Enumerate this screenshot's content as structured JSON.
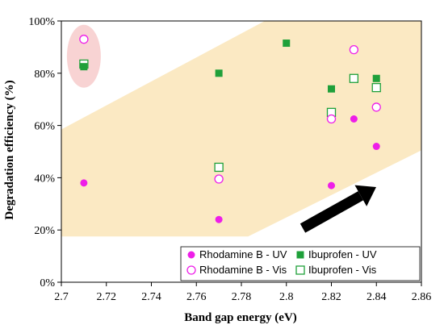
{
  "chart_data": {
    "type": "scatter",
    "title": "",
    "xlabel": "Band gap energy (eV)",
    "ylabel": "Degradation efficiency (%)",
    "xlim": [
      2.7,
      2.86
    ],
    "ylim": [
      0,
      100
    ],
    "x_ticks": [
      "2.7",
      "2.72",
      "2.74",
      "2.76",
      "2.78",
      "2.8",
      "2.82",
      "2.84",
      "2.86"
    ],
    "y_ticks": [
      "0%",
      "20%",
      "40%",
      "60%",
      "80%",
      "100%"
    ],
    "grid": false,
    "legend_position": "bottom-right",
    "series": [
      {
        "name": "Rhodamine B - UV",
        "marker": "filled-circle",
        "color": "#ee1ee8",
        "points": [
          [
            2.71,
            38
          ],
          [
            2.77,
            24
          ],
          [
            2.82,
            37
          ],
          [
            2.83,
            62.5
          ],
          [
            2.84,
            52
          ]
        ]
      },
      {
        "name": "Rhodamine B - Vis",
        "marker": "open-circle",
        "color": "#ee1ee8",
        "points": [
          [
            2.71,
            93
          ],
          [
            2.77,
            39.5
          ],
          [
            2.82,
            62.5
          ],
          [
            2.83,
            89
          ],
          [
            2.84,
            67
          ]
        ]
      },
      {
        "name": "Ibuprofen - UV",
        "marker": "filled-square",
        "color": "#1fa03a",
        "points": [
          [
            2.71,
            82.5
          ],
          [
            2.77,
            80
          ],
          [
            2.8,
            91.5
          ],
          [
            2.82,
            74
          ],
          [
            2.84,
            78
          ]
        ]
      },
      {
        "name": "Ibuprofen - Vis",
        "marker": "open-square",
        "color": "#1fa03a",
        "points": [
          [
            2.71,
            83.5
          ],
          [
            2.77,
            44
          ],
          [
            2.82,
            65
          ],
          [
            2.83,
            78
          ],
          [
            2.84,
            74.5
          ]
        ]
      }
    ],
    "annotations": {
      "trend_band_color": "#fbe9c3",
      "highlight_ellipse_color": "#f8d3d3",
      "arrow_color": "#000000"
    }
  }
}
